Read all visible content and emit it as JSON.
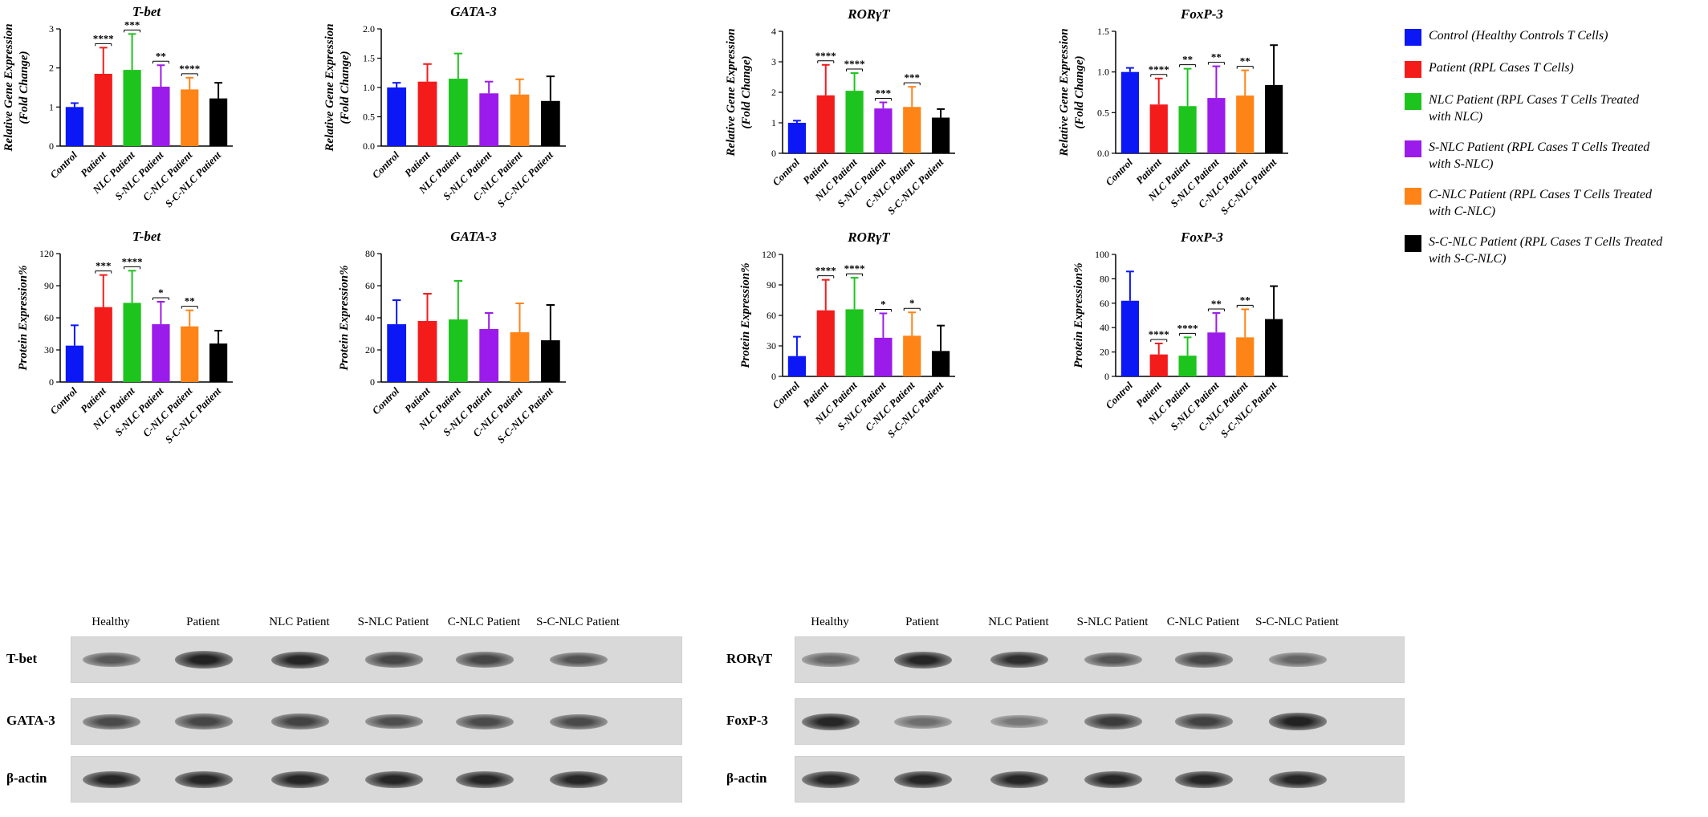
{
  "categories": [
    "Control",
    "Patient",
    "NLC Patient",
    "S-NLC Patient",
    "C-NLC Patient",
    "S-C-NLC Patient"
  ],
  "colors": [
    "#0b17f5",
    "#f41b1b",
    "#1ec41e",
    "#9b1bea",
    "#ff8418",
    "#000000"
  ],
  "legend": {
    "items": [
      {
        "label_lines": [
          "Control (Healthy Controls T Cells)"
        ],
        "color": "#0b17f5"
      },
      {
        "label_lines": [
          "Patient (RPL Cases T Cells)"
        ],
        "color": "#f41b1b"
      },
      {
        "label_lines": [
          "NLC Patient (RPL Cases T Cells Treated",
          "with NLC)"
        ],
        "color": "#1ec41e"
      },
      {
        "label_lines": [
          "S-NLC Patient (RPL Cases T Cells Treated",
          "with S-NLC)"
        ],
        "color": "#9b1bea"
      },
      {
        "label_lines": [
          "C-NLC Patient (RPL Cases T Cells Treated",
          "with C-NLC)"
        ],
        "color": "#ff8418"
      },
      {
        "label_lines": [
          "S-C-NLC Patient (RPL Cases T Cells Treated",
          "with S-C-NLC)"
        ],
        "color": "#000000"
      }
    ]
  },
  "chart_data": [
    {
      "type": "bar",
      "title": "T-bet",
      "ylabel_lines": [
        "Relative Gene Expression",
        "(Fold Change)"
      ],
      "ylim": [
        0,
        3
      ],
      "yticks": [
        "0",
        "1",
        "2",
        "3"
      ],
      "values": [
        1.0,
        1.85,
        1.95,
        1.52,
        1.45,
        1.22
      ],
      "errors": [
        0.1,
        0.67,
        0.92,
        0.55,
        0.3,
        0.4
      ],
      "significance": [
        "",
        "****",
        "***",
        "**",
        "****",
        ""
      ]
    },
    {
      "type": "bar",
      "title": "GATA-3",
      "ylabel_lines": [
        "Relative Gene Expression",
        "(Fold Change)"
      ],
      "ylim": [
        0,
        2
      ],
      "yticks": [
        "0.0",
        "0.5",
        "1.0",
        "1.5",
        "2.0"
      ],
      "values": [
        1.0,
        1.1,
        1.15,
        0.9,
        0.88,
        0.77
      ],
      "errors": [
        0.08,
        0.3,
        0.43,
        0.2,
        0.26,
        0.42
      ],
      "significance": [
        "",
        "",
        "",
        "",
        "",
        ""
      ]
    },
    {
      "type": "bar",
      "title": "RORγT",
      "ylabel_lines": [
        "Relative Gene Expression",
        "(Fold Change)"
      ],
      "ylim": [
        0,
        4
      ],
      "yticks": [
        "0",
        "1",
        "2",
        "3",
        "4"
      ],
      "values": [
        1.0,
        1.9,
        2.05,
        1.47,
        1.52,
        1.17
      ],
      "errors": [
        0.07,
        1.0,
        0.58,
        0.2,
        0.66,
        0.28
      ],
      "significance": [
        "",
        "****",
        "****",
        "***",
        "***",
        ""
      ]
    },
    {
      "type": "bar",
      "title": "FoxP-3",
      "ylabel_lines": [
        "Relative Gene Expression",
        "(Fold Change)"
      ],
      "ylim": [
        0,
        1.5
      ],
      "yticks": [
        "0.0",
        "0.5",
        "1.0",
        "1.5"
      ],
      "values": [
        1.0,
        0.6,
        0.58,
        0.68,
        0.71,
        0.84
      ],
      "errors": [
        0.05,
        0.32,
        0.46,
        0.39,
        0.31,
        0.49
      ],
      "significance": [
        "",
        "****",
        "**",
        "**",
        "**",
        ""
      ]
    },
    {
      "type": "bar",
      "title": "T-bet",
      "ylabel_lines": [
        "Protein Expression%"
      ],
      "ylim": [
        0,
        120
      ],
      "yticks": [
        "0",
        "30",
        "60",
        "90",
        "120"
      ],
      "values": [
        34,
        70,
        74,
        54,
        52,
        36
      ],
      "errors": [
        19,
        30,
        30,
        21,
        15,
        12
      ],
      "significance": [
        "",
        "***",
        "****",
        "*",
        "**",
        ""
      ]
    },
    {
      "type": "bar",
      "title": "GATA-3",
      "ylabel_lines": [
        "Protein Expression%"
      ],
      "ylim": [
        0,
        80
      ],
      "yticks": [
        "0",
        "20",
        "40",
        "60",
        "80"
      ],
      "values": [
        36,
        38,
        39,
        33,
        31,
        26
      ],
      "errors": [
        15,
        17,
        24,
        10,
        18,
        22
      ],
      "significance": [
        "",
        "",
        "",
        "",
        "",
        ""
      ]
    },
    {
      "type": "bar",
      "title": "RORγT",
      "ylabel_lines": [
        "Protein Expression%"
      ],
      "ylim": [
        0,
        120
      ],
      "yticks": [
        "0",
        "30",
        "60",
        "90",
        "120"
      ],
      "values": [
        20,
        65,
        66,
        38,
        40,
        25
      ],
      "errors": [
        19,
        30,
        31,
        24,
        23,
        25
      ],
      "significance": [
        "",
        "****",
        "****",
        "*",
        "*",
        ""
      ]
    },
    {
      "type": "bar",
      "title": "FoxP-3",
      "ylabel_lines": [
        "Protein Expression%"
      ],
      "ylim": [
        0,
        100
      ],
      "yticks": [
        "0",
        "20",
        "40",
        "60",
        "80",
        "100"
      ],
      "values": [
        62,
        18,
        17,
        36,
        32,
        47
      ],
      "errors": [
        24,
        9,
        15,
        16,
        23,
        27
      ],
      "significance": [
        "",
        "****",
        "****",
        "**",
        "**",
        ""
      ]
    }
  ],
  "blots": [
    {
      "lane_labels": [
        "Healthy",
        "Patient",
        "NLC Patient",
        "S-NLC Patient",
        "C-NLC Patient",
        "S-C-NLC Patient"
      ],
      "rows": [
        {
          "label": "T-bet",
          "intensity": [
            0.62,
            0.92,
            0.9,
            0.72,
            0.72,
            0.65
          ]
        },
        {
          "label": "GATA-3",
          "intensity": [
            0.7,
            0.72,
            0.74,
            0.68,
            0.7,
            0.7
          ]
        },
        {
          "label": "β-actin",
          "intensity": [
            0.9,
            0.9,
            0.9,
            0.9,
            0.9,
            0.9
          ]
        }
      ]
    },
    {
      "lane_labels": [
        "Healthy",
        "Patient",
        "NLC Patient",
        "S-NLC Patient",
        "C-NLC Patient",
        "S-C-NLC Patient"
      ],
      "rows": [
        {
          "label": "RORγT",
          "intensity": [
            0.55,
            0.9,
            0.85,
            0.65,
            0.72,
            0.55
          ]
        },
        {
          "label": "FoxP-3",
          "intensity": [
            0.9,
            0.5,
            0.45,
            0.78,
            0.75,
            0.92
          ]
        },
        {
          "label": "β-actin",
          "intensity": [
            0.9,
            0.9,
            0.9,
            0.9,
            0.9,
            0.9
          ]
        }
      ]
    }
  ]
}
